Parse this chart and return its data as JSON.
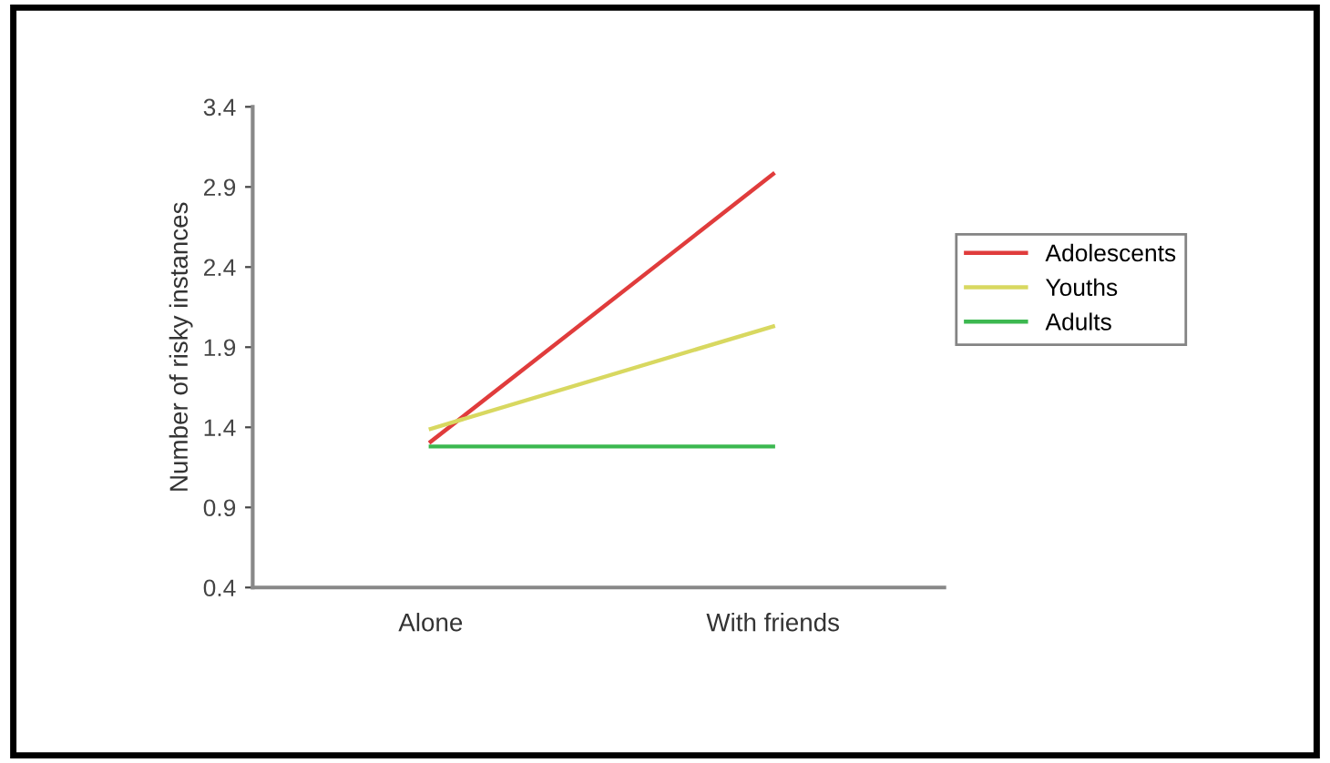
{
  "chart_data": {
    "type": "line",
    "ylabel": "Number of risky instances",
    "categories": [
      "Alone",
      "With friends"
    ],
    "series": [
      {
        "name": "Adolescents",
        "color": "#e03c3c",
        "values": [
          1.31,
          2.98
        ]
      },
      {
        "name": "Youths",
        "color": "#d8d860",
        "values": [
          1.39,
          2.03
        ]
      },
      {
        "name": "Adults",
        "color": "#3cb850",
        "values": [
          1.28,
          1.28
        ]
      }
    ],
    "ylim": [
      0.4,
      3.4
    ],
    "yticks": [
      0.4,
      0.9,
      1.4,
      1.9,
      2.4,
      2.9,
      3.4
    ],
    "grid": false,
    "legend": "right",
    "marker": "none",
    "line_style": "solid"
  }
}
